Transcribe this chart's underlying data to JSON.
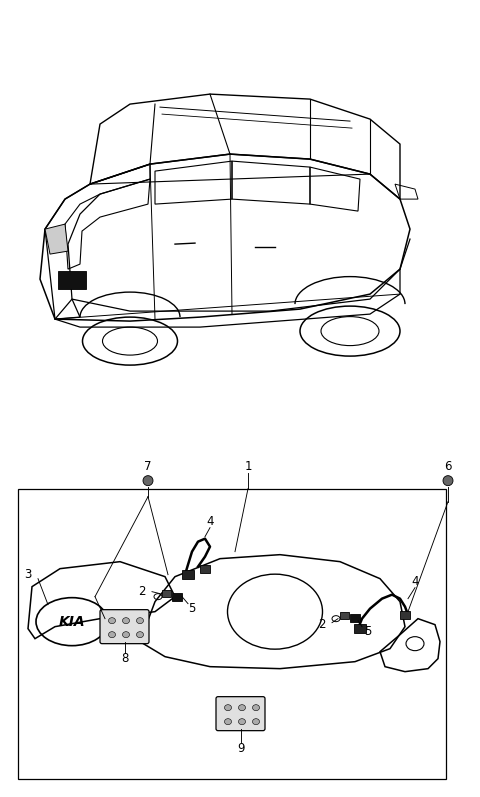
{
  "bg_color": "#ffffff",
  "fig_width": 4.8,
  "fig_height": 7.97,
  "dpi": 100,
  "lc": "#000000",
  "lw": 0.8,
  "fs": 8.5
}
